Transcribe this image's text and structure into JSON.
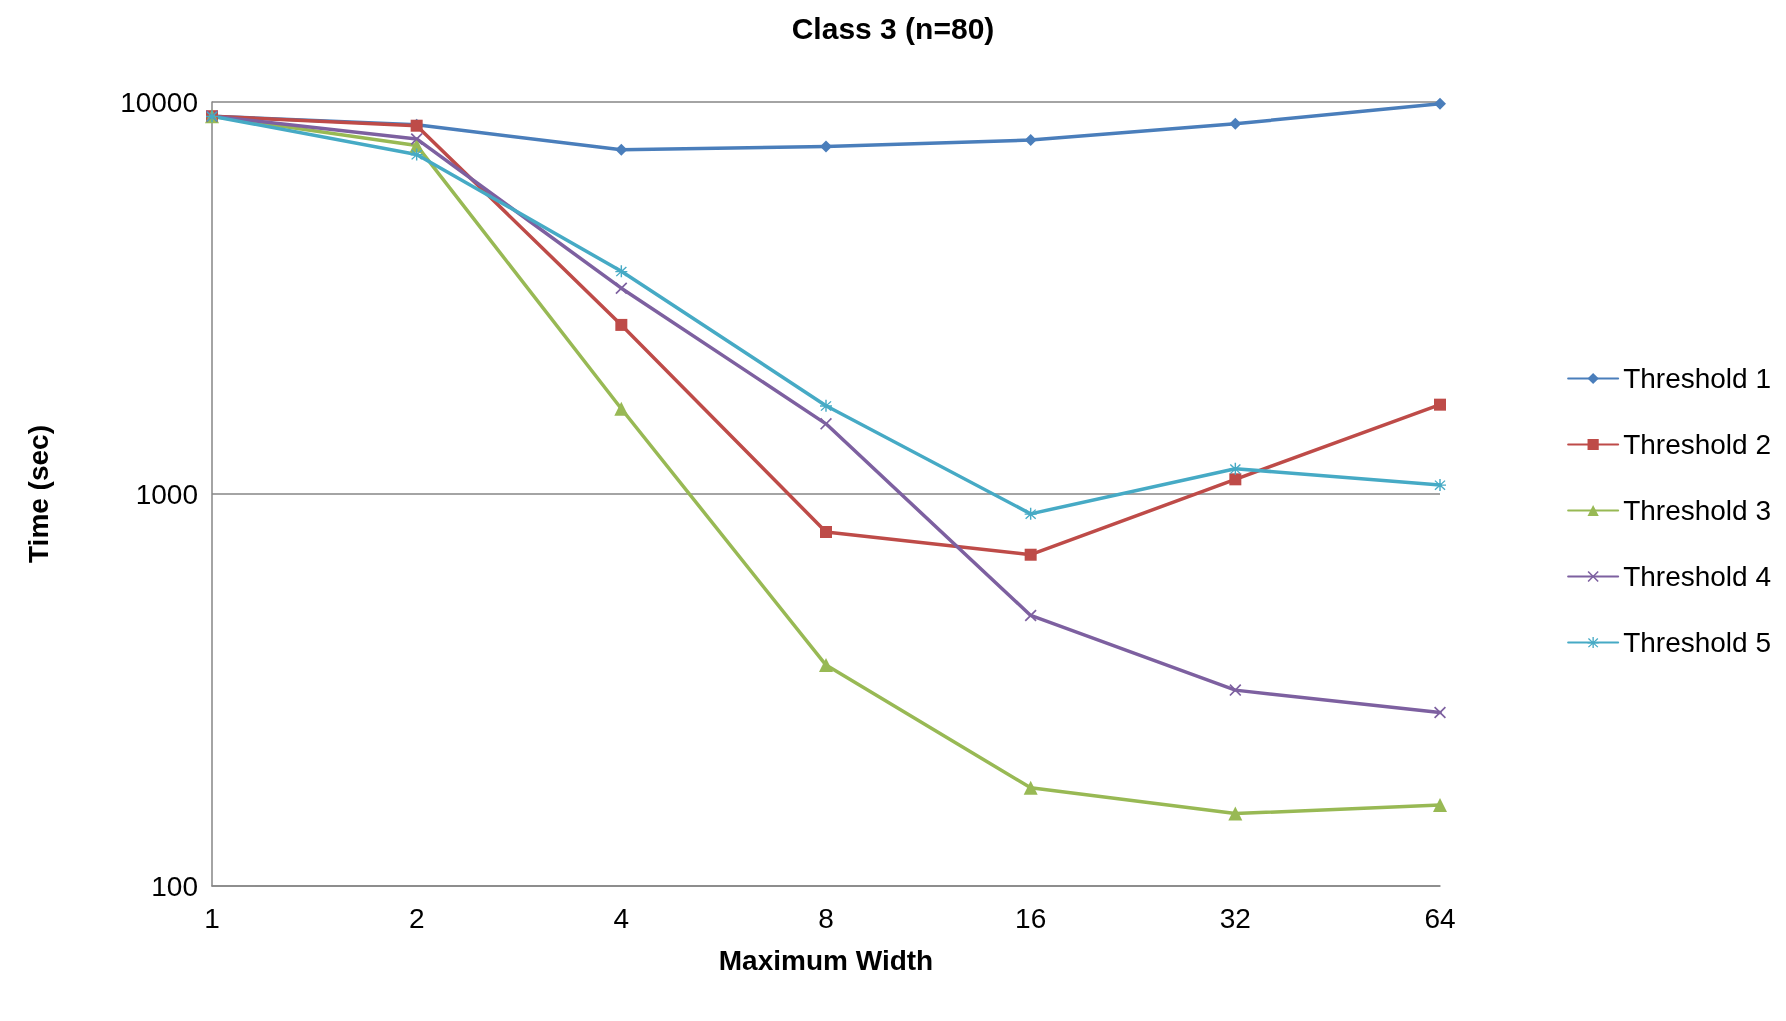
{
  "chart_data": {
    "type": "line",
    "title": "Class 3 (n=80)",
    "xlabel": "Maximum Width",
    "ylabel": "Time (sec)",
    "categories": [
      "1",
      "2",
      "4",
      "8",
      "16",
      "32",
      "64"
    ],
    "series": [
      {
        "name": "Threshold 1",
        "color": "#4a7ebb",
        "marker": "diamond",
        "values": [
          9200,
          8750,
          7550,
          7700,
          8000,
          8800,
          9900
        ]
      },
      {
        "name": "Threshold 2",
        "color": "#be4b48",
        "marker": "square",
        "values": [
          9200,
          8700,
          2700,
          800,
          700,
          1090,
          1690
        ]
      },
      {
        "name": "Threshold 3",
        "color": "#98b954",
        "marker": "triangle",
        "values": [
          9200,
          7750,
          1650,
          366,
          178,
          153,
          161
        ]
      },
      {
        "name": "Threshold 4",
        "color": "#7d60a0",
        "marker": "cross",
        "values": [
          9200,
          8050,
          3350,
          1510,
          490,
          316,
          277
        ]
      },
      {
        "name": "Threshold 5",
        "color": "#46aac5",
        "marker": "star",
        "values": [
          9200,
          7350,
          3700,
          1680,
          890,
          1160,
          1055
        ]
      }
    ],
    "log": true,
    "ylim": [
      100,
      10000
    ],
    "yticks": [
      100,
      1000,
      10000
    ],
    "grid": "y",
    "legend": "right",
    "line_style": "solid"
  }
}
